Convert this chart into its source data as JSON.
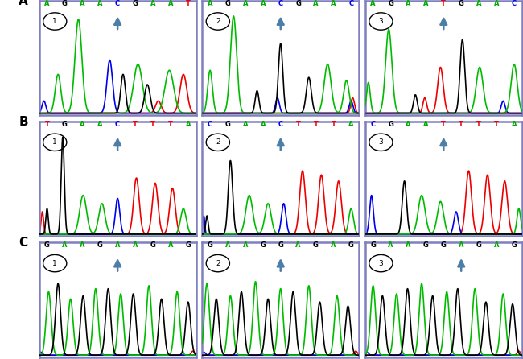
{
  "figure_bg": "#ffffff",
  "panel_border_color": "#8080c0",
  "panel_bg": "#ffffff",
  "rows": [
    "A",
    "B",
    "C"
  ],
  "arrow_color": "#4d7ea8",
  "dna_colors": {
    "A": "#00aa00",
    "G": "#000000",
    "C": "#0000ee",
    "T": "#ee0000"
  },
  "panels": {
    "A1": {
      "bases": [
        "A",
        "G",
        "A",
        "A",
        "C",
        "G",
        "A",
        "A",
        "T"
      ],
      "arrow_idx": 4
    },
    "A2": {
      "bases": [
        "A",
        "G",
        "A",
        "A",
        "C",
        "G",
        "A",
        "A",
        "C"
      ],
      "arrow_idx": 4
    },
    "A3": {
      "bases": [
        "A",
        "G",
        "A",
        "A",
        "T",
        "G",
        "A",
        "A",
        "C"
      ],
      "arrow_idx": 4
    },
    "B1": {
      "bases": [
        "T",
        "G",
        "A",
        "A",
        "C",
        "T",
        "T",
        "T",
        "A"
      ],
      "arrow_idx": 4
    },
    "B2": {
      "bases": [
        "C",
        "G",
        "A",
        "A",
        "C",
        "T",
        "T",
        "T",
        "A"
      ],
      "arrow_idx": 4
    },
    "B3": {
      "bases": [
        "C",
        "G",
        "A",
        "A",
        "T",
        "T",
        "T",
        "T",
        "A"
      ],
      "arrow_idx": 4
    },
    "C1": {
      "bases": [
        "G",
        "A",
        "A",
        "G",
        "A",
        "A",
        "G",
        "A",
        "G"
      ],
      "arrow_idx": 4
    },
    "C2": {
      "bases": [
        "G",
        "A",
        "A",
        "G",
        "G",
        "A",
        "G",
        "A",
        "G"
      ],
      "arrow_idx": 4
    },
    "C3": {
      "bases": [
        "G",
        "A",
        "A",
        "G",
        "G",
        "A",
        "G",
        "A",
        "G"
      ],
      "arrow_idx": 5
    }
  }
}
